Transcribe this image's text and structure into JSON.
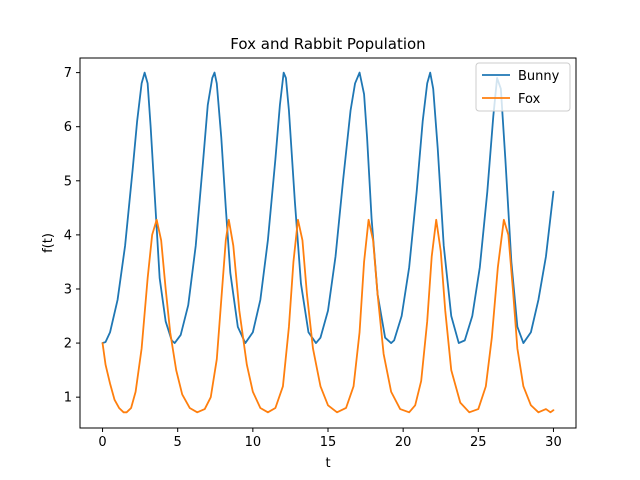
{
  "chart_data": {
    "type": "line",
    "title": "Fox and Rabbit Population",
    "xlabel": "t",
    "ylabel": "f(t)",
    "xlim": [
      -1.5,
      31.5
    ],
    "ylim": [
      0.43,
      7.27
    ],
    "xticks": [
      0,
      5,
      10,
      15,
      20,
      25,
      30
    ],
    "xtick_labels": [
      "0",
      "5",
      "10",
      "15",
      "20",
      "25",
      "30"
    ],
    "yticks": [
      1,
      2,
      3,
      4,
      5,
      6,
      7
    ],
    "ytick_labels": [
      "1",
      "2",
      "3",
      "4",
      "5",
      "6",
      "7"
    ],
    "grid": false,
    "legend_position": "top-right",
    "series": [
      {
        "name": "Bunny",
        "color": "#1f77b4",
        "x": [
          0,
          0.2,
          0.5,
          1.0,
          1.5,
          2.0,
          2.3,
          2.6,
          2.8,
          3.0,
          3.2,
          3.5,
          3.8,
          4.2,
          4.6,
          4.8,
          5.2,
          5.7,
          6.2,
          6.7,
          7.0,
          7.3,
          7.45,
          7.6,
          7.9,
          8.2,
          8.5,
          9.0,
          9.5,
          9.5,
          10.0,
          10.5,
          11.0,
          11.5,
          11.8,
          12.05,
          12.2,
          12.4,
          12.8,
          13.2,
          13.7,
          14.2,
          14.5,
          15.0,
          15.5,
          16.0,
          16.5,
          16.8,
          17.1,
          17.4,
          17.6,
          17.9,
          18.3,
          18.8,
          19.2,
          19.4,
          19.9,
          20.4,
          20.9,
          21.3,
          21.6,
          21.8,
          22.0,
          22.3,
          22.7,
          23.2,
          23.7,
          24.1,
          24.6,
          25.1,
          25.6,
          26.0,
          26.25,
          26.5,
          26.8,
          27.2,
          27.6,
          28.0,
          28.5,
          29.0,
          29.5,
          30.0
        ],
        "y": [
          2.0,
          2.02,
          2.2,
          2.8,
          3.8,
          5.2,
          6.1,
          6.8,
          7.0,
          6.8,
          6.0,
          4.6,
          3.2,
          2.4,
          2.05,
          2.0,
          2.15,
          2.7,
          3.8,
          5.4,
          6.4,
          6.9,
          7.0,
          6.8,
          5.8,
          4.5,
          3.3,
          2.3,
          2.0,
          2.0,
          2.2,
          2.8,
          3.9,
          5.4,
          6.4,
          7.0,
          6.9,
          6.3,
          4.6,
          3.1,
          2.2,
          2.0,
          2.1,
          2.6,
          3.6,
          5.0,
          6.3,
          6.8,
          7.0,
          6.6,
          5.8,
          4.3,
          2.9,
          2.1,
          2.0,
          2.05,
          2.5,
          3.4,
          4.8,
          6.1,
          6.8,
          7.0,
          6.7,
          5.6,
          3.8,
          2.5,
          2.0,
          2.05,
          2.5,
          3.4,
          4.8,
          6.2,
          6.9,
          6.7,
          5.4,
          3.5,
          2.3,
          2.0,
          2.2,
          2.8,
          3.6,
          4.8
        ]
      },
      {
        "name": "Fox",
        "color": "#ff7f0e",
        "x": [
          0,
          0.2,
          0.5,
          0.8,
          1.1,
          1.4,
          1.6,
          1.9,
          2.2,
          2.6,
          3.0,
          3.3,
          3.6,
          3.9,
          4.2,
          4.5,
          4.9,
          5.3,
          5.8,
          6.3,
          6.8,
          7.2,
          7.6,
          7.9,
          8.2,
          8.4,
          8.7,
          9.1,
          9.6,
          10.0,
          10.5,
          11.0,
          11.5,
          12.0,
          12.4,
          12.7,
          13.0,
          13.3,
          13.6,
          14.0,
          14.5,
          15.0,
          15.6,
          16.2,
          16.7,
          17.1,
          17.4,
          17.7,
          18.0,
          18.3,
          18.7,
          19.2,
          19.8,
          20.4,
          20.8,
          21.2,
          21.6,
          21.9,
          22.2,
          22.5,
          22.8,
          23.2,
          23.8,
          24.4,
          25.0,
          25.5,
          25.9,
          26.3,
          26.7,
          27.0,
          27.3,
          27.6,
          28.0,
          28.5,
          29.0,
          29.5,
          29.8,
          30.0
        ],
        "y": [
          2.0,
          1.6,
          1.25,
          0.95,
          0.8,
          0.72,
          0.72,
          0.8,
          1.1,
          1.9,
          3.2,
          4.0,
          4.28,
          3.9,
          3.0,
          2.2,
          1.5,
          1.05,
          0.8,
          0.72,
          0.78,
          1.0,
          1.7,
          2.8,
          3.9,
          4.28,
          3.8,
          2.6,
          1.6,
          1.1,
          0.8,
          0.72,
          0.8,
          1.2,
          2.3,
          3.5,
          4.28,
          3.9,
          2.9,
          1.9,
          1.2,
          0.85,
          0.72,
          0.8,
          1.2,
          2.2,
          3.5,
          4.28,
          3.9,
          2.9,
          1.8,
          1.1,
          0.78,
          0.72,
          0.85,
          1.3,
          2.4,
          3.6,
          4.28,
          3.7,
          2.6,
          1.5,
          0.9,
          0.72,
          0.78,
          1.2,
          2.1,
          3.4,
          4.28,
          4.0,
          3.0,
          1.9,
          1.2,
          0.85,
          0.72,
          0.78,
          0.72,
          0.76
        ]
      }
    ]
  }
}
